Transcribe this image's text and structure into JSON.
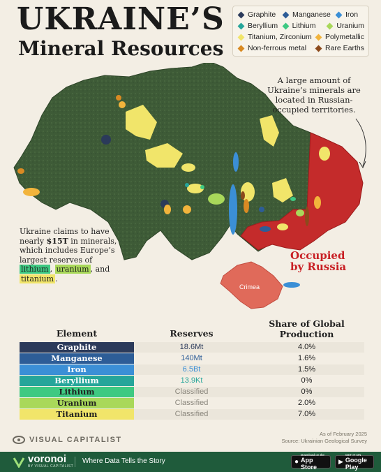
{
  "title": {
    "line1": "UKRAINE’S",
    "line2": "Mineral Resources"
  },
  "legend": {
    "items": [
      {
        "label": "Graphite",
        "color": "#2b3a5a"
      },
      {
        "label": "Manganese",
        "color": "#2d5d97"
      },
      {
        "label": "Iron",
        "color": "#3b8fd6"
      },
      {
        "label": "Beryllium",
        "color": "#26a59a"
      },
      {
        "label": "Lithium",
        "color": "#3ec982"
      },
      {
        "label": "Uranium",
        "color": "#a9d85a"
      },
      {
        "label": "Titanium, Zirconium",
        "color": "#f1e56a"
      },
      {
        "label": "Polymetallic",
        "color": "#f2b43c"
      },
      {
        "label": "Non-ferrous metal",
        "color": "#d98a23"
      },
      {
        "label": "Rare Earths",
        "color": "#8c4a1c"
      }
    ]
  },
  "map": {
    "annotation_top": "A large amount of Ukraine’s minerals are located in Russian-occupied territories.",
    "annotation_left": {
      "pre": "Ukraine claims to have nearly ",
      "bold": "$15T",
      "mid": " in minerals, which includes Europe’s largest reserves of ",
      "lithium": "lithium",
      "sep1": ",",
      "uranium": "uranium",
      "sep2": ", and ",
      "titanium": "titanium",
      "end": "."
    },
    "occupied_label": {
      "line1": "Occupied",
      "line2": "by Russia"
    },
    "crimea_label": "Crimea",
    "colors": {
      "territory": "#3d5a36",
      "occupied": "#c42b2b",
      "crimea": "#e06a5a"
    }
  },
  "table": {
    "headers": {
      "element": "Element",
      "reserves": "Reserves",
      "share_line1": "Share of Global",
      "share_line2": "Production"
    },
    "rows": [
      {
        "element": "Graphite",
        "reserves": "18.6Mt",
        "share": "4.0%",
        "bg": "#2b3a5a",
        "fg": "#ffffff",
        "rescolor": "#2b3a5a"
      },
      {
        "element": "Manganese",
        "reserves": "140Mt",
        "share": "1.6%",
        "bg": "#2d5d97",
        "fg": "#ffffff",
        "rescolor": "#2d5d97"
      },
      {
        "element": "Iron",
        "reserves": "6.5Bt",
        "share": "1.5%",
        "bg": "#3b8fd6",
        "fg": "#ffffff",
        "rescolor": "#3b8fd6"
      },
      {
        "element": "Beryllium",
        "reserves": "13.9Kt",
        "share": "0%",
        "bg": "#26a59a",
        "fg": "#ffffff",
        "rescolor": "#26a59a"
      },
      {
        "element": "Lithium",
        "reserves": "Classified",
        "share": "0%",
        "bg": "#3ec982",
        "fg": "#1f1f1f",
        "rescolor": "#8a867c"
      },
      {
        "element": "Uranium",
        "reserves": "Classified",
        "share": "2.0%",
        "bg": "#a9d85a",
        "fg": "#1f1f1f",
        "rescolor": "#8a867c"
      },
      {
        "element": "Titanium",
        "reserves": "Classified",
        "share": "7.0%",
        "bg": "#f1e56a",
        "fg": "#1f1f1f",
        "rescolor": "#8a867c"
      }
    ]
  },
  "meta": {
    "date": "As of February 2025",
    "source": "Source: Ukrainian Geological Survey"
  },
  "brand": {
    "name": "VISUAL CAPITALIST"
  },
  "footer": {
    "name": "voronoi",
    "sub": "BY VISUAL CAPITALIST",
    "tagline": "Where Data Tells the Story",
    "appstore_small": "Download on the",
    "appstore_big": "App Store",
    "google_small": "GET IT ON",
    "google_big": "Google Play"
  }
}
